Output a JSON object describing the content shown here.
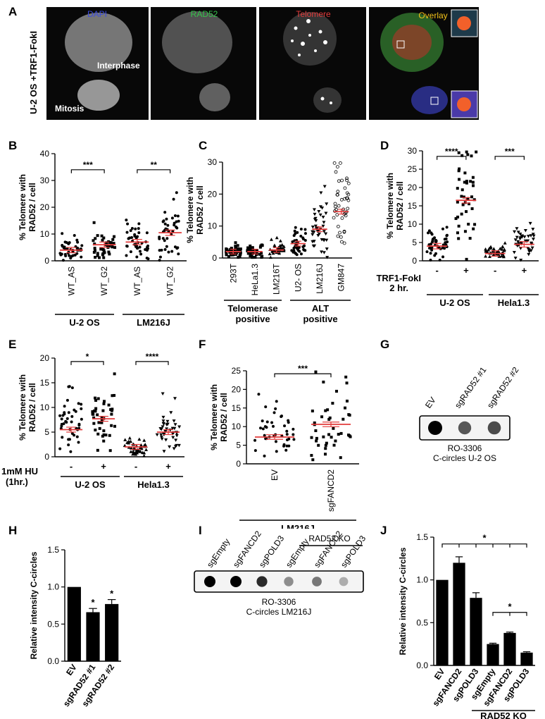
{
  "panel_letters": [
    "A",
    "B",
    "C",
    "D",
    "E",
    "F",
    "G",
    "H",
    "I",
    "J"
  ],
  "panel_a": {
    "side_label": "U-2 OS +TRF1-FokI",
    "tiles": [
      "DAPI",
      "RAD52",
      "Telomere",
      "Overlay"
    ],
    "tile_colors": [
      "#3b4bdc",
      "#35c24a",
      "#e23b3b",
      "#f2c21a"
    ],
    "annotations": {
      "interphase": "Interphase",
      "mitosis": "Mitosis"
    }
  },
  "common": {
    "ylabel": "% Telomere with RAD52 / cell"
  },
  "chart_data": [
    {
      "panel": "B",
      "type": "scatter",
      "categories": [
        "WT_AS",
        "WT_G2",
        "WT_AS",
        "WT_G2"
      ],
      "ylim": [
        0,
        40
      ],
      "yticks": [
        0,
        10,
        20,
        30,
        40
      ],
      "means": [
        4,
        6,
        7,
        10.5
      ],
      "groups": [
        "U-2 OS",
        "LM216J"
      ],
      "significance": [
        "***",
        "**"
      ]
    },
    {
      "panel": "C",
      "type": "scatter",
      "categories": [
        "293T",
        "HeLa1.3",
        "LM216T",
        "U2- OS",
        "LM216J",
        "GM847"
      ],
      "ylim": [
        0,
        30
      ],
      "yticks": [
        0,
        10,
        20,
        30
      ],
      "means": [
        2,
        2,
        2.5,
        4.5,
        9,
        14.5
      ],
      "groups": [
        "Telomerase positive",
        "ALT positive"
      ]
    },
    {
      "panel": "D",
      "type": "scatter",
      "categories": [
        "-",
        "+",
        "-",
        "+"
      ],
      "ylim": [
        0,
        30
      ],
      "yticks": [
        0,
        5,
        10,
        15,
        20,
        25,
        30
      ],
      "means": [
        4,
        16.5,
        2,
        4.5
      ],
      "treatment": "TRF1-FokI 2 hr.",
      "groups": [
        "U-2 OS",
        "Hela1.3"
      ],
      "significance": [
        "****",
        "***"
      ]
    },
    {
      "panel": "E",
      "type": "scatter",
      "categories": [
        "-",
        "+",
        "-",
        "+"
      ],
      "ylim": [
        0,
        20
      ],
      "yticks": [
        0,
        5,
        10,
        15,
        20
      ],
      "means": [
        5.5,
        7.7,
        2,
        5
      ],
      "treatment": "1mM HU (1hr.)",
      "groups": [
        "U-2 OS",
        "Hela1.3"
      ],
      "significance": [
        "*",
        "****"
      ]
    },
    {
      "panel": "F",
      "type": "scatter",
      "categories": [
        "EV",
        "sgFANCD2"
      ],
      "ylim": [
        0,
        25
      ],
      "yticks": [
        0,
        5,
        10,
        15,
        20,
        25
      ],
      "means": [
        7.2,
        10.6
      ],
      "groups": [
        "LM216J"
      ],
      "significance": [
        "***"
      ]
    },
    {
      "panel": "H",
      "type": "bar",
      "categories": [
        "EV",
        "sgRAD52 #1",
        "sgRAD52 #2"
      ],
      "values": [
        1.0,
        0.66,
        0.77
      ],
      "errors": [
        0,
        0.05,
        0.06
      ],
      "stars": [
        "",
        "*",
        "*"
      ],
      "ylabel": "Relative intensity C-circles",
      "ylim": [
        0,
        1.5
      ],
      "yticks": [
        0,
        0.5,
        1.0,
        1.5
      ]
    },
    {
      "panel": "J",
      "type": "bar",
      "categories": [
        "EV",
        "sgFANCD2",
        "sgPOLD3",
        "sgEmpty",
        "sgFANCD2",
        "sgPOLD3"
      ],
      "values": [
        1.0,
        1.2,
        0.79,
        0.25,
        0.38,
        0.15
      ],
      "errors": [
        0,
        0.07,
        0.06,
        0.01,
        0.01,
        0.01
      ],
      "ylabel": "Relative intensity C-circles",
      "ylim": [
        0,
        1.5
      ],
      "yticks": [
        0,
        0.5,
        1.0,
        1.5
      ],
      "groups": [
        "RAD52 KO"
      ],
      "significance": [
        "*",
        "*"
      ]
    }
  ],
  "panel_g": {
    "lanes": [
      "EV",
      "sgRAD52 #1",
      "sgRAD52 #2"
    ],
    "dot_intensity": [
      1.0,
      0.6,
      0.65
    ],
    "caption_1": "RO-3306",
    "caption_2": "C-circles U-2 OS"
  },
  "panel_i": {
    "lanes": [
      "sgEmpty",
      "sgFANCD2",
      "sgPOLD3",
      "sgEmpty",
      "sgFANCD2",
      "sgPOLD3"
    ],
    "dot_intensity": [
      1.0,
      1.0,
      0.8,
      0.35,
      0.45,
      0.2
    ],
    "group": "RAD52 KO",
    "caption_1": "RO-3306",
    "caption_2": "C-circles LM216J"
  }
}
